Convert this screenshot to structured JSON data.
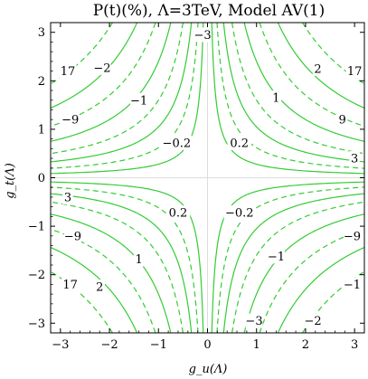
{
  "chart_data": {
    "type": "contour",
    "title": "P(t)(%), Λ=3TeV, Model AV(1)",
    "xlabel": "g_u(Λ)",
    "ylabel": "g_t(Λ)",
    "xlim": [
      -3.2,
      3.2
    ],
    "ylim": [
      -3.2,
      3.2
    ],
    "x_ticks": [
      {
        "value": -3,
        "label": "−3"
      },
      {
        "value": -2,
        "label": "−2"
      },
      {
        "value": -1,
        "label": "−1"
      },
      {
        "value": 0,
        "label": "0"
      },
      {
        "value": 1,
        "label": "1"
      },
      {
        "value": 2,
        "label": "2"
      },
      {
        "value": 3,
        "label": "3"
      }
    ],
    "y_ticks": [
      {
        "value": -3,
        "label": "−3"
      },
      {
        "value": -2,
        "label": "−2"
      },
      {
        "value": -1,
        "label": "−1"
      },
      {
        "value": 0,
        "label": "0"
      },
      {
        "value": 1,
        "label": "1"
      },
      {
        "value": 2,
        "label": "2"
      },
      {
        "value": 3,
        "label": "3"
      }
    ],
    "line_color": "#33cc33",
    "grid_color": "#dddddd",
    "contour_constants": [
      {
        "k": 0.28,
        "style": "solid"
      },
      {
        "k": 0.62,
        "style": "dashed"
      },
      {
        "k": 1.05,
        "style": "solid"
      },
      {
        "k": 1.6,
        "style": "dashed"
      },
      {
        "k": 2.4,
        "style": "solid"
      },
      {
        "k": 3.4,
        "style": "dashed"
      },
      {
        "k": 4.6,
        "style": "solid"
      },
      {
        "k": 6.2,
        "style": "dashed"
      }
    ],
    "contour_labels": [
      {
        "text": "−3",
        "x": -0.1,
        "y": 2.95
      },
      {
        "text": "−2",
        "x": -2.15,
        "y": 2.27
      },
      {
        "text": "17",
        "x": -2.85,
        "y": 2.2
      },
      {
        "text": "−1",
        "x": -1.4,
        "y": 1.6
      },
      {
        "text": "−9",
        "x": -2.8,
        "y": 1.2
      },
      {
        "text": "−0.2",
        "x": -0.63,
        "y": 0.72
      },
      {
        "text": "0.2",
        "x": 0.65,
        "y": 0.72
      },
      {
        "text": "1",
        "x": 1.4,
        "y": 1.65
      },
      {
        "text": "2",
        "x": 2.25,
        "y": 2.25
      },
      {
        "text": "17",
        "x": 3.0,
        "y": 2.2
      },
      {
        "text": "9",
        "x": 2.75,
        "y": 1.2
      },
      {
        "text": "3",
        "x": 3.0,
        "y": 0.4
      },
      {
        "text": "3",
        "x": -2.85,
        "y": -0.4
      },
      {
        "text": "0.2",
        "x": -0.6,
        "y": -0.72
      },
      {
        "text": "−0.2",
        "x": 0.65,
        "y": -0.72
      },
      {
        "text": "−9",
        "x": -2.75,
        "y": -1.2
      },
      {
        "text": "1",
        "x": -1.4,
        "y": -1.68
      },
      {
        "text": "17",
        "x": -2.8,
        "y": -2.2
      },
      {
        "text": "2",
        "x": -2.2,
        "y": -2.25
      },
      {
        "text": "−1",
        "x": 1.4,
        "y": -1.62
      },
      {
        "text": "−9",
        "x": 2.95,
        "y": -1.2
      },
      {
        "text": "−1",
        "x": 2.95,
        "y": -2.2
      },
      {
        "text": "−3",
        "x": 0.95,
        "y": -2.95
      },
      {
        "text": "−2",
        "x": 2.15,
        "y": -2.95
      }
    ]
  }
}
